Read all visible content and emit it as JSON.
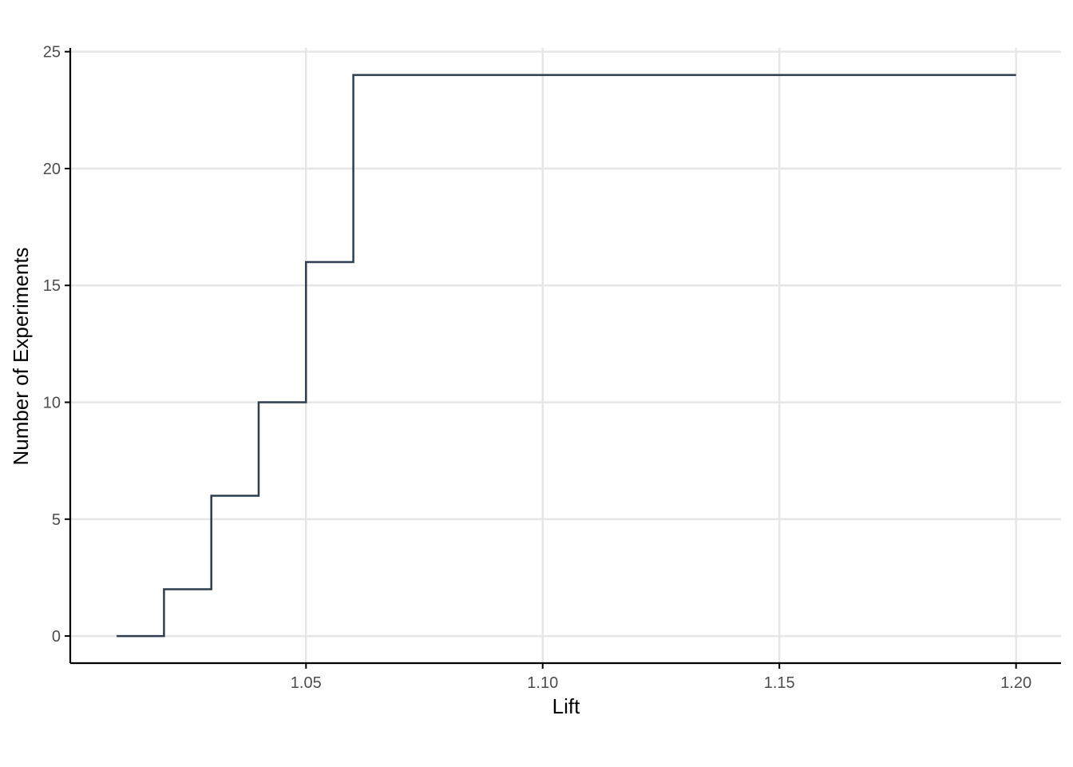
{
  "chart_data": {
    "type": "line",
    "step": true,
    "title": "",
    "xlabel": "Lift",
    "ylabel": "Number of Experiments",
    "xlim": [
      1.0002,
      1.2095
    ],
    "ylim": [
      -1.16,
      25.16
    ],
    "x_ticks": [
      1.05,
      1.1,
      1.15,
      1.2
    ],
    "x_tick_labels": [
      "1.05",
      "1.10",
      "1.15",
      "1.20"
    ],
    "y_ticks": [
      0,
      5,
      10,
      15,
      20,
      25
    ],
    "y_tick_labels": [
      "0",
      "5",
      "10",
      "15",
      "20",
      "25"
    ],
    "grid": true,
    "series": [
      {
        "color": "#2c3e50",
        "x": [
          1.01,
          1.02,
          1.03,
          1.04,
          1.05,
          1.06,
          1.2
        ],
        "y": [
          0,
          2,
          6,
          10,
          16,
          24,
          24
        ]
      }
    ]
  }
}
